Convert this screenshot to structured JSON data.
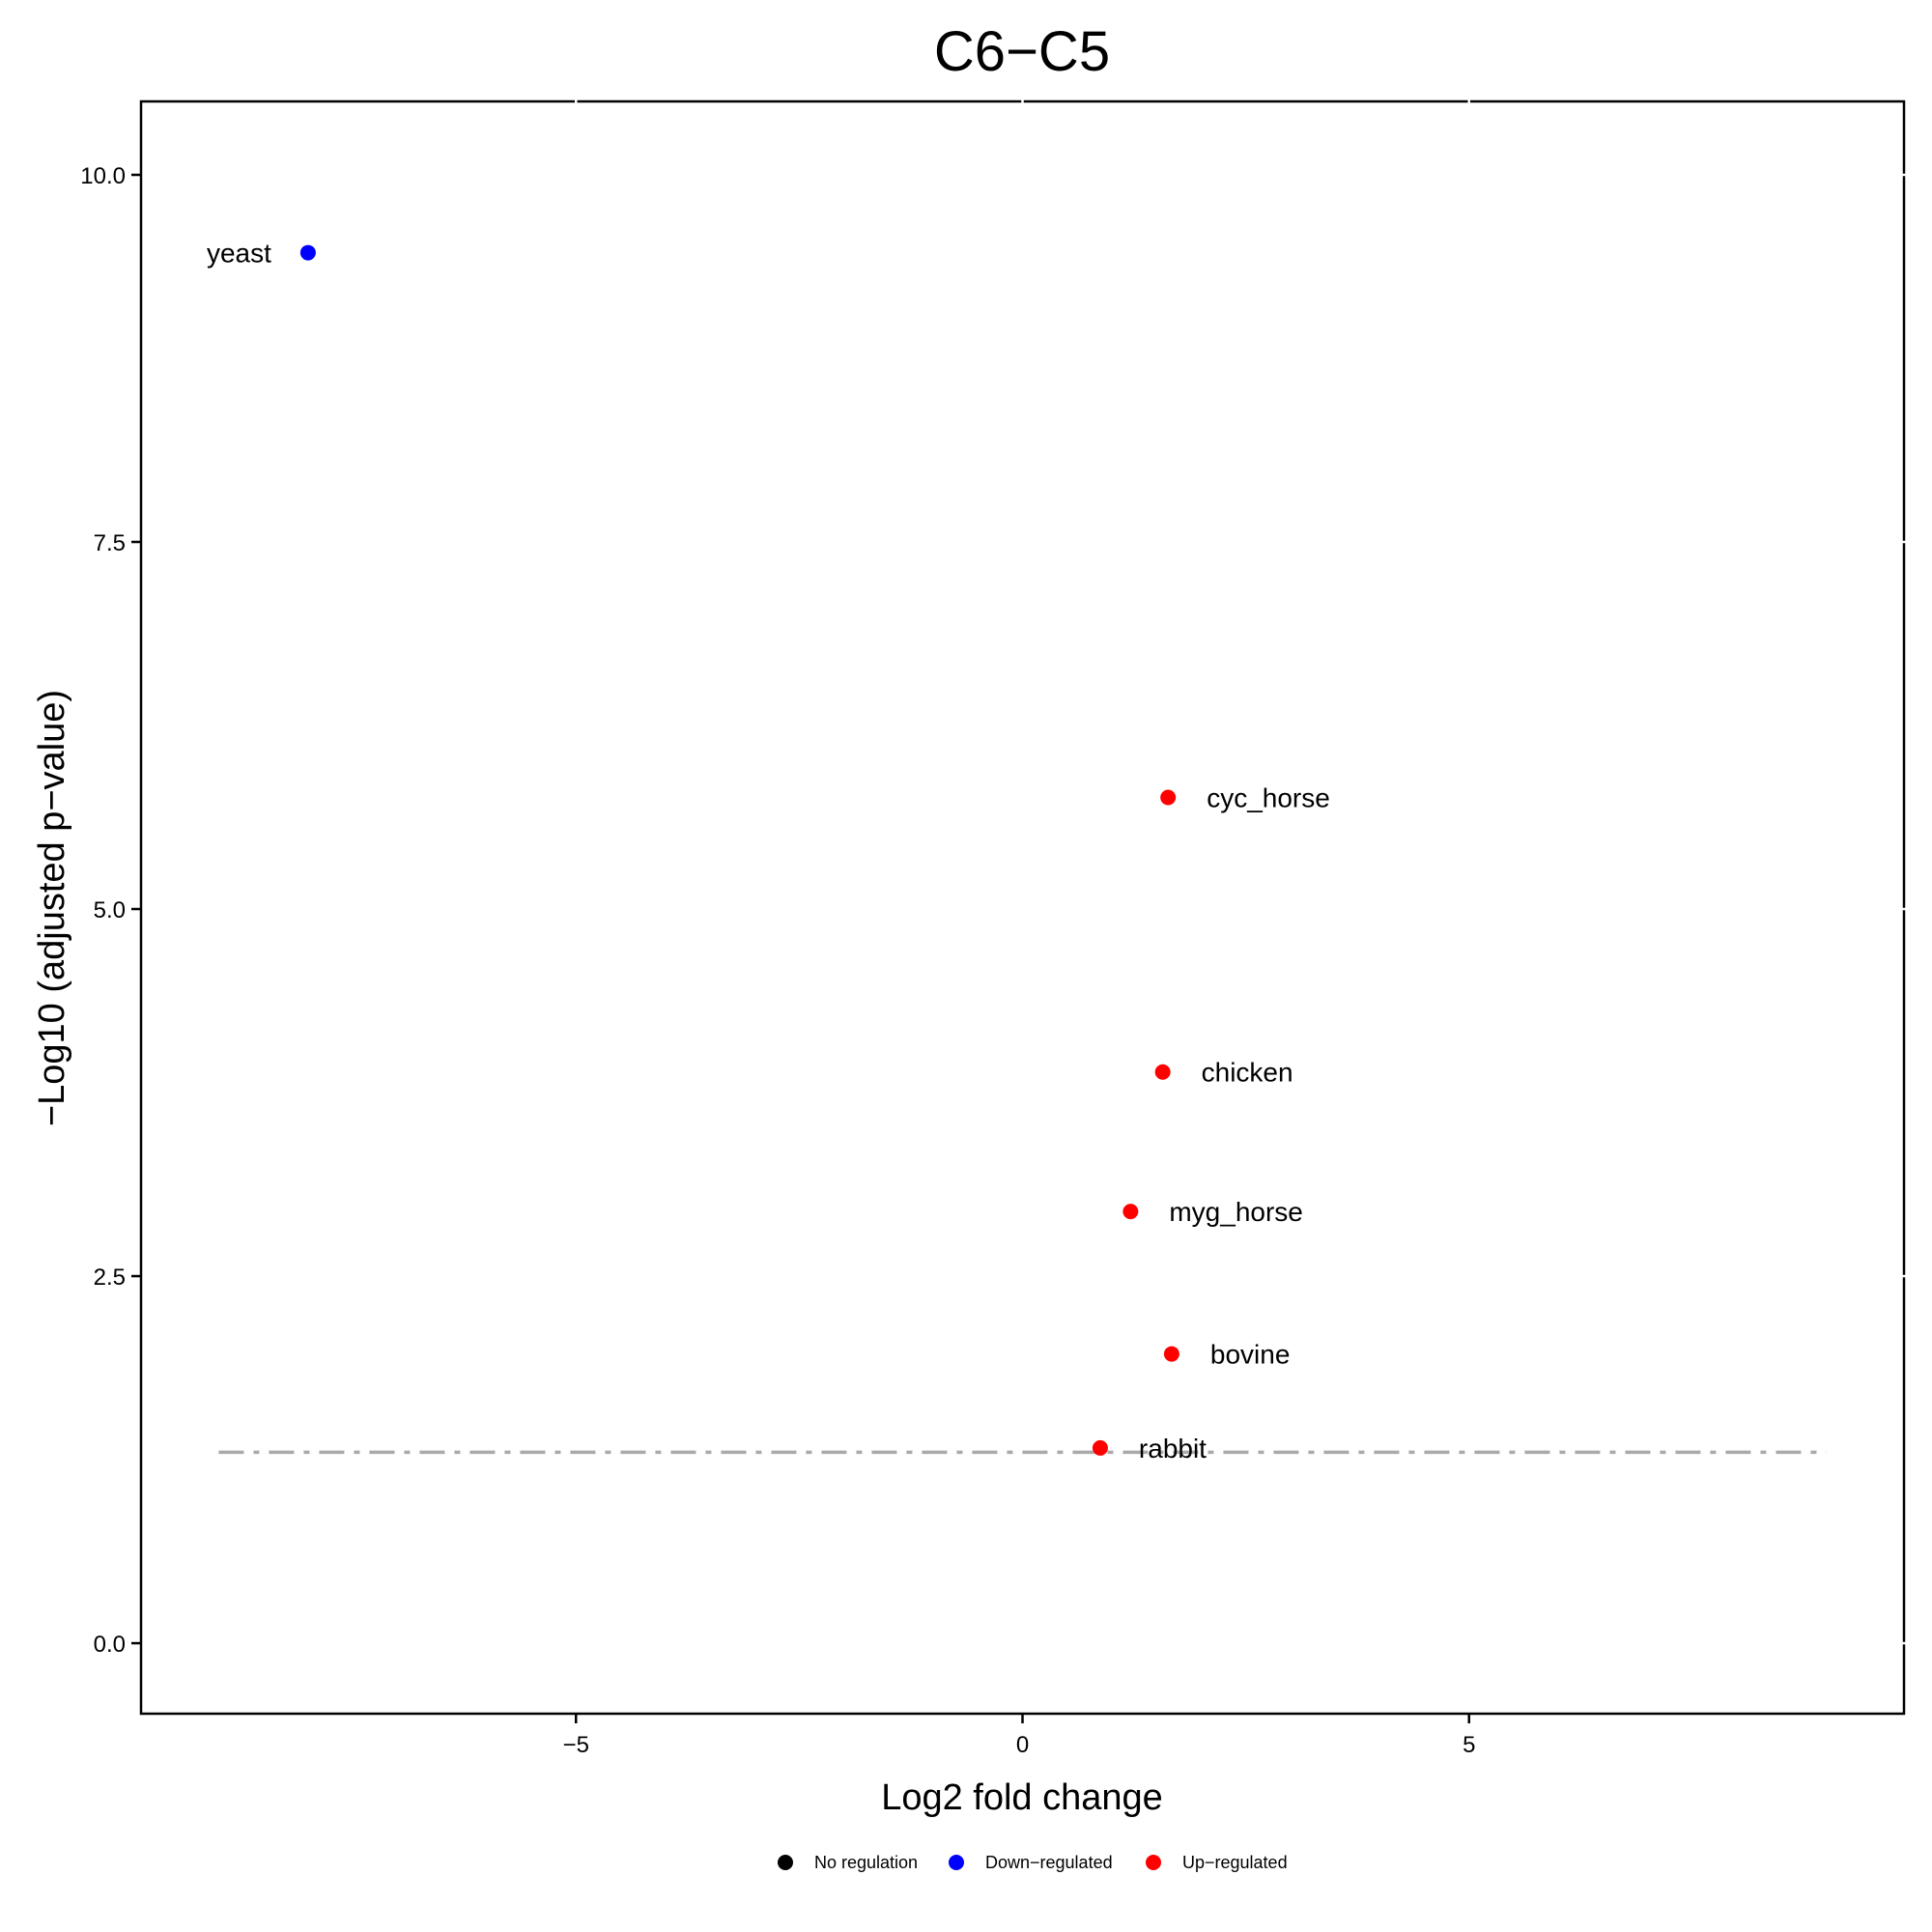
{
  "chart_data": {
    "type": "scatter",
    "title": "C6−C5",
    "xlabel": "Log2 fold change",
    "ylabel": "−Log10 (adjusted p−value)",
    "xlim": [
      -9.87,
      9.87
    ],
    "ylim": [
      -0.48,
      10.5
    ],
    "x_ticks": [
      {
        "value": -5,
        "label": "−5"
      },
      {
        "value": 0,
        "label": "0"
      },
      {
        "value": 5,
        "label": "5"
      }
    ],
    "y_ticks": [
      {
        "value": 0,
        "label": "0.0"
      },
      {
        "value": 2.5,
        "label": "2.5"
      },
      {
        "value": 5,
        "label": "5.0"
      },
      {
        "value": 7.5,
        "label": "7.5"
      },
      {
        "value": 10,
        "label": "10.0"
      }
    ],
    "threshold": {
      "y": 1.3,
      "style": "dashdot",
      "color": "#aaaaaa"
    },
    "grid": false,
    "legend": {
      "placement": "bottom",
      "entries": [
        {
          "label": "No regulation",
          "color": "#000000"
        },
        {
          "label": "Down−regulated",
          "color": "#0000ff"
        },
        {
          "label": "Up−regulated",
          "color": "#ff0000"
        }
      ]
    },
    "points": [
      {
        "label": "yeast",
        "x": -8.0,
        "y": 9.47,
        "group": "Down−regulated",
        "color": "#0000ff",
        "label_side": "left"
      },
      {
        "label": "cyc_horse",
        "x": 1.63,
        "y": 5.76,
        "group": "Up−regulated",
        "color": "#ff0000",
        "label_side": "right"
      },
      {
        "label": "chicken",
        "x": 1.57,
        "y": 3.89,
        "group": "Up−regulated",
        "color": "#ff0000",
        "label_side": "right"
      },
      {
        "label": "myg_horse",
        "x": 1.21,
        "y": 2.94,
        "group": "Up−regulated",
        "color": "#ff0000",
        "label_side": "right"
      },
      {
        "label": "bovine",
        "x": 1.67,
        "y": 1.97,
        "group": "Up−regulated",
        "color": "#ff0000",
        "label_side": "right"
      },
      {
        "label": "rabbit",
        "x": 0.87,
        "y": 1.33,
        "group": "Up−regulated",
        "color": "#ff0000",
        "label_side": "right"
      }
    ]
  }
}
